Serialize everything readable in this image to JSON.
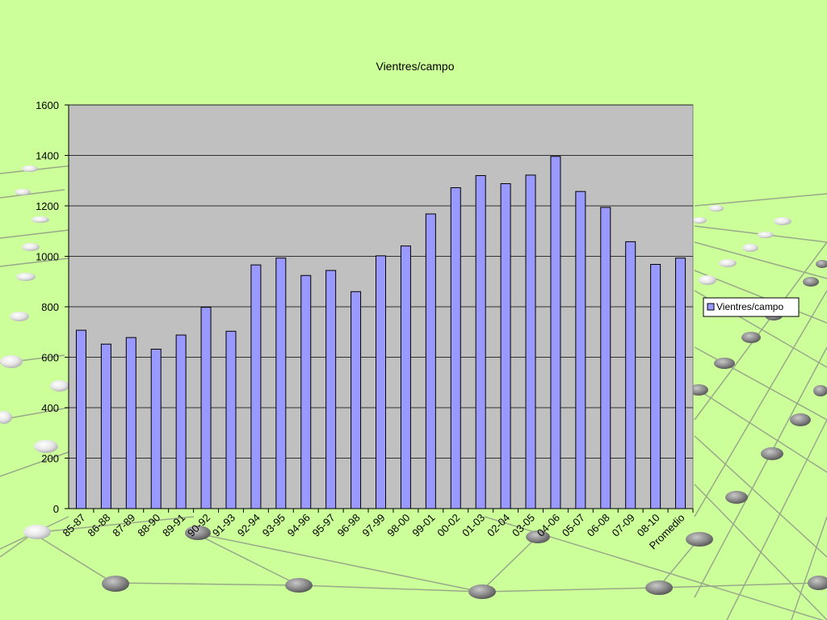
{
  "colors": {
    "background": "#ccff99",
    "plot_area": "#c0c0c0",
    "bar_fill": "#9999ff",
    "bar_stroke": "#000000",
    "grid": "#000000",
    "node_light": "#e6e6e6",
    "node_dark": "#8a8a8a"
  },
  "chart_data": {
    "type": "bar",
    "title": "Vientres/campo",
    "xlabel": "",
    "ylabel": "",
    "ylim": [
      0,
      1600
    ],
    "yticks": [
      0,
      200,
      400,
      600,
      800,
      1000,
      1200,
      1400,
      1600
    ],
    "grid": true,
    "legend_position": "right",
    "categories": [
      "85-87",
      "86-88",
      "87-89",
      "88-90",
      "89-91",
      "90-92",
      "91-93",
      "92-94",
      "93-95",
      "94-96",
      "95-97",
      "96-98",
      "97-99",
      "98-00",
      "99-01",
      "00-02",
      "01-03",
      "02-04",
      "03-05",
      "04-06",
      "05-07",
      "06-08",
      "07-09",
      "08-10",
      "Promedio"
    ],
    "series": [
      {
        "name": "Vientres/campo",
        "values": [
          707,
          652,
          678,
          632,
          688,
          798,
          703,
          966,
          993,
          924,
          944,
          860,
          1002,
          1041,
          1168,
          1272,
          1320,
          1288,
          1322,
          1396,
          1257,
          1194,
          1058,
          968,
          993
        ]
      }
    ]
  }
}
